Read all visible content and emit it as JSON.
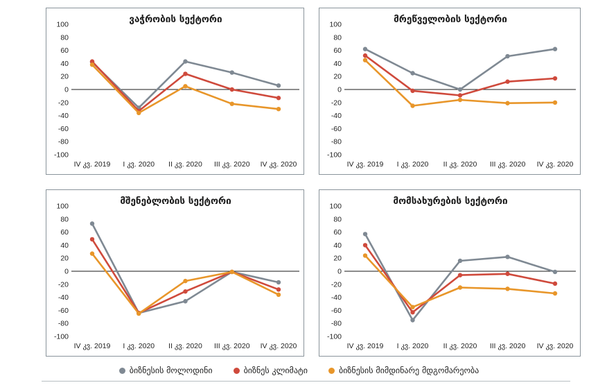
{
  "colors": {
    "expectations": "#7f8993",
    "climate": "#cf4a3c",
    "situation": "#e8962a",
    "zero_line": "#1a1a1a",
    "frame": "#8a949b"
  },
  "legend": [
    {
      "label": "ბიზნესის მოლოდინი",
      "color_key": "expectations"
    },
    {
      "label": "ბიზნეს კლიმატი",
      "color_key": "climate"
    },
    {
      "label": "ბიზნესის მიმდინარე მდგომარეობა",
      "color_key": "situation"
    }
  ],
  "chart_data": [
    {
      "type": "line",
      "title": "ვაჭრობის სექტორი",
      "categories": [
        "IV კვ. 2019",
        "I კვ. 2020",
        "II კვ. 2020",
        "III კვ. 2020",
        "IV კვ. 2020"
      ],
      "ylim": [
        -100,
        100
      ],
      "yticks": [
        100,
        80,
        60,
        40,
        20,
        0,
        -20,
        -40,
        -60,
        -80,
        -100
      ],
      "grid": false,
      "series": [
        {
          "name": "ბიზნესის მოლოდინი",
          "color_key": "expectations",
          "values": [
            42,
            -28,
            43,
            26,
            6
          ]
        },
        {
          "name": "ბიზნეს კლიმატი",
          "color_key": "climate",
          "values": [
            43,
            -33,
            24,
            0,
            -13
          ]
        },
        {
          "name": "ბიზნესის მიმდინარე მდგომარეობა",
          "color_key": "situation",
          "values": [
            38,
            -36,
            5,
            -22,
            -30
          ]
        }
      ]
    },
    {
      "type": "line",
      "title": "მრეწველობის სექტორი",
      "categories": [
        "IV კვ. 2019",
        "I კვ. 2020",
        "II კვ. 2020",
        "III კვ. 2020",
        "IV კვ. 2020"
      ],
      "ylim": [
        -100,
        100
      ],
      "yticks": [
        100,
        80,
        60,
        40,
        20,
        0,
        -20,
        -40,
        -60,
        -80,
        -100
      ],
      "grid": false,
      "series": [
        {
          "name": "ბიზნესის მოლოდინი",
          "color_key": "expectations",
          "values": [
            62,
            25,
            0,
            51,
            62
          ]
        },
        {
          "name": "ბიზნეს კლიმატი",
          "color_key": "climate",
          "values": [
            52,
            -2,
            -9,
            12,
            17
          ]
        },
        {
          "name": "ბიზნესის მიმდინარე მდგომარეობა",
          "color_key": "situation",
          "values": [
            45,
            -25,
            -16,
            -21,
            -20
          ]
        }
      ]
    },
    {
      "type": "line",
      "title": "მშენებლობის სექტორი",
      "categories": [
        "IV კვ. 2019",
        "I კვ. 2020",
        "II კვ. 2020",
        "III კვ. 2020",
        "IV კვ. 2020"
      ],
      "ylim": [
        -100,
        100
      ],
      "yticks": [
        100,
        80,
        60,
        40,
        20,
        0,
        -20,
        -40,
        -60,
        -80,
        -100
      ],
      "grid": false,
      "series": [
        {
          "name": "ბიზნესის მოლოდინი",
          "color_key": "expectations",
          "values": [
            73,
            -64,
            -46,
            -1,
            -17
          ]
        },
        {
          "name": "ბიზნეს კლიმატი",
          "color_key": "climate",
          "values": [
            49,
            -64,
            -31,
            -1,
            -28
          ]
        },
        {
          "name": "ბიზნესის მიმდინარე მდგომარეობა",
          "color_key": "situation",
          "values": [
            27,
            -65,
            -15,
            -1,
            -36
          ]
        }
      ]
    },
    {
      "type": "line",
      "title": "მომსახურების სექტორი",
      "categories": [
        "IV კვ. 2019",
        "I კვ. 2020",
        "II კვ. 2020",
        "III კვ. 2020",
        "IV კვ. 2020"
      ],
      "ylim": [
        -100,
        100
      ],
      "yticks": [
        100,
        80,
        60,
        40,
        20,
        0,
        -20,
        -40,
        -60,
        -80,
        -100
      ],
      "grid": false,
      "series": [
        {
          "name": "ბიზნესის მოლოდინი",
          "color_key": "expectations",
          "values": [
            57,
            -75,
            16,
            22,
            -1
          ]
        },
        {
          "name": "ბიზნეს კლიმატი",
          "color_key": "climate",
          "values": [
            40,
            -63,
            -6,
            -4,
            -19
          ]
        },
        {
          "name": "ბიზნესის მიმდინარე მდგომარეობა",
          "color_key": "situation",
          "values": [
            24,
            -55,
            -25,
            -27,
            -34
          ]
        }
      ]
    }
  ]
}
